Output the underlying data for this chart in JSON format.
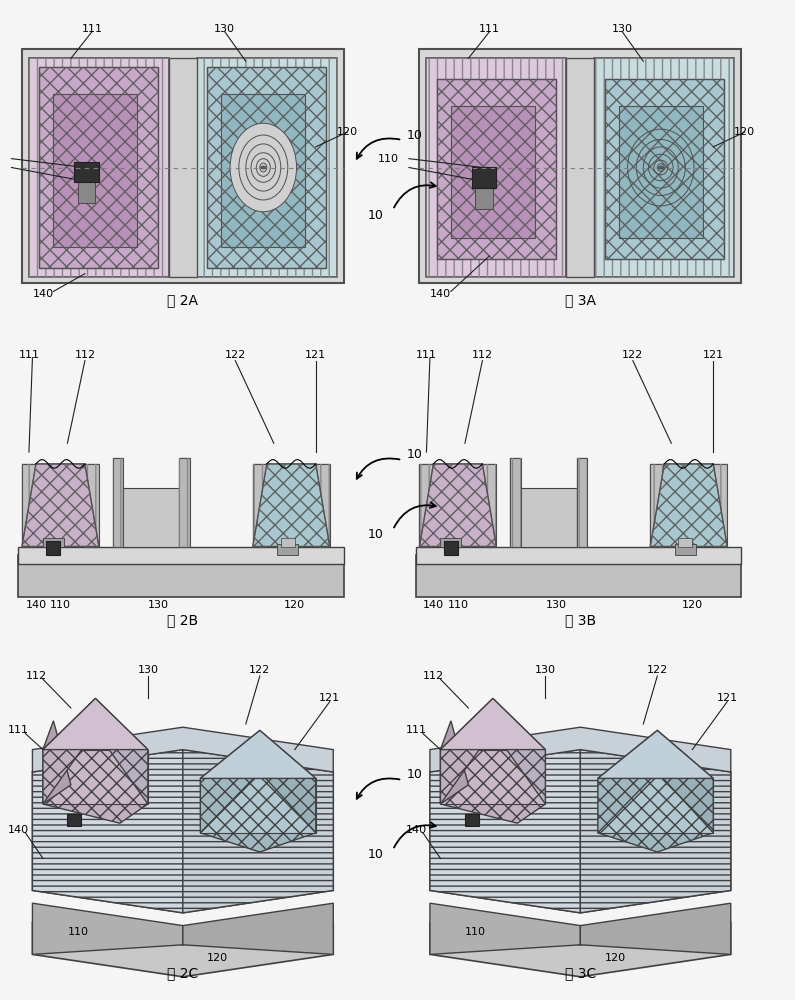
{
  "bg_color": "#f5f5f5",
  "fig_width": 7.95,
  "fig_height": 10.0,
  "dpi": 100,
  "panel_bg": "#f0f0f0",
  "outer_border_color": "#e8d8e8",
  "inner_bg_left": "#e0c8e0",
  "inner_bg_right": "#c8e0e8",
  "hatch_color_left": "#c0a0c0",
  "hatch_color_right": "#a0c0d0",
  "gray1": "#b0b0b0",
  "gray2": "#c8c8c8",
  "gray3": "#d8d8d8",
  "gray_dark": "#707070",
  "gray_chip": "#404040",
  "border_dark": "#303030",
  "captions": [
    "图 2A",
    "图 3A",
    "图 2B",
    "图 3B",
    "图 2C",
    "图 3C"
  ]
}
